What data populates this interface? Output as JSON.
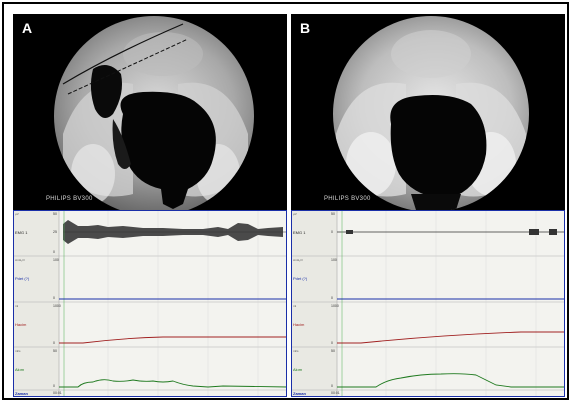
{
  "panels": [
    {
      "label": "A",
      "xray_text": "PHILIPS BV300",
      "channels": [
        {
          "unit": "µV",
          "label": "EMG 1",
          "scale": [
            "50",
            "25",
            "0"
          ],
          "color": "#333333"
        },
        {
          "unit": "cmH₂O",
          "label": "Pdet (?)",
          "scale": [
            "100",
            "0"
          ],
          "color": "#1a2fa8"
        },
        {
          "unit": "ml",
          "label": "Hacim",
          "scale": [
            "1000",
            "0"
          ],
          "color": "#a02020"
        },
        {
          "unit": "ml/s",
          "label": "Akım",
          "scale": [
            "50",
            "0"
          ],
          "color": "#1f7a1f"
        }
      ],
      "time_label": "Zaman",
      "time_start": "00:01"
    },
    {
      "label": "B",
      "xray_text": "PHILIPS BV300",
      "channels": [
        {
          "unit": "µV",
          "label": "EMG 1",
          "scale": [
            "50",
            "0"
          ],
          "color": "#333333"
        },
        {
          "unit": "cmH₂O",
          "label": "Pdet (?)",
          "scale": [
            "100",
            "0"
          ],
          "color": "#1a2fa8"
        },
        {
          "unit": "ml",
          "label": "Hacim",
          "scale": [
            "1000",
            "0"
          ],
          "color": "#a02020"
        },
        {
          "unit": "ml/s",
          "label": "Akım",
          "scale": [
            "50",
            "0"
          ],
          "color": "#1f7a1f"
        }
      ],
      "time_label": "Zaman",
      "time_start": "00:01"
    }
  ],
  "colors": {
    "pdet": "#1a2fa8",
    "volume": "#a02020",
    "flow": "#1f7a1f",
    "emg": "#333333"
  }
}
